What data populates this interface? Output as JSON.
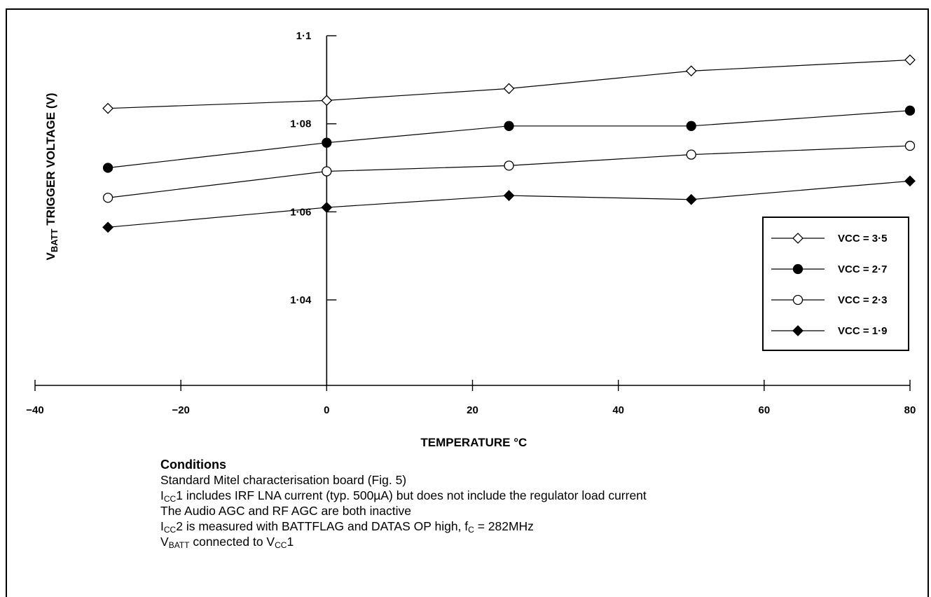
{
  "chart_data": {
    "type": "line",
    "xlabel": "TEMPERATURE °C",
    "ylabel": {
      "main": "V",
      "sub": "BATT",
      "rest": " TRIGGER VOLTAGE (V)"
    },
    "xlim": [
      -40,
      80
    ],
    "ylim": [
      1.02,
      1.1
    ],
    "x_ticks": [
      -40,
      -20,
      0,
      20,
      40,
      60,
      80
    ],
    "x_tick_labels": [
      "−40",
      "−20",
      "0",
      "20",
      "40",
      "60",
      "80"
    ],
    "y_ticks": [
      1.04,
      1.06,
      1.08,
      1.1
    ],
    "y_tick_labels": [
      "1·04",
      "1·06",
      "1·08",
      "1·1"
    ],
    "grid": false,
    "legend_position": "right",
    "series": [
      {
        "name": "VCC = 3·5",
        "marker": "diamond-open",
        "x": [
          -30,
          0,
          25,
          50,
          80
        ],
        "y": [
          1.0835,
          1.0853,
          1.088,
          1.092,
          1.0945
        ]
      },
      {
        "name": "VCC = 2·7",
        "marker": "circle-filled",
        "x": [
          -30,
          0,
          25,
          50,
          80
        ],
        "y": [
          1.07,
          1.0757,
          1.0795,
          1.0795,
          1.083
        ]
      },
      {
        "name": "VCC = 2·3",
        "marker": "circle-open",
        "x": [
          -30,
          0,
          25,
          50,
          80
        ],
        "y": [
          1.0632,
          1.0692,
          1.0705,
          1.073,
          1.075
        ]
      },
      {
        "name": "VCC = 1·9",
        "marker": "diamond-filled",
        "x": [
          -30,
          0,
          25,
          50,
          80
        ],
        "y": [
          1.0565,
          1.061,
          1.0637,
          1.0628,
          1.067
        ]
      }
    ]
  },
  "conditions": {
    "heading": "Conditions",
    "line1": "Standard Mitel characterisation board (Fig. 5)",
    "line2": {
      "a": "I",
      "a_sub": "CC",
      "b": "1 includes IRF LNA current (typ. 500µA) but does not include the regulator load current"
    },
    "line3": "The Audio AGC and RF AGC are both inactive",
    "line4": {
      "a": "I",
      "a_sub": "CC",
      "b": "2 is measured with BATTFLAG and DATAS OP high, f",
      "c_sub": "C",
      "d": " = 282MHz"
    },
    "line5": {
      "a": "V",
      "a_sub": "BATT",
      "b": " connected to V",
      "c_sub": "CC",
      "d": "1"
    }
  }
}
